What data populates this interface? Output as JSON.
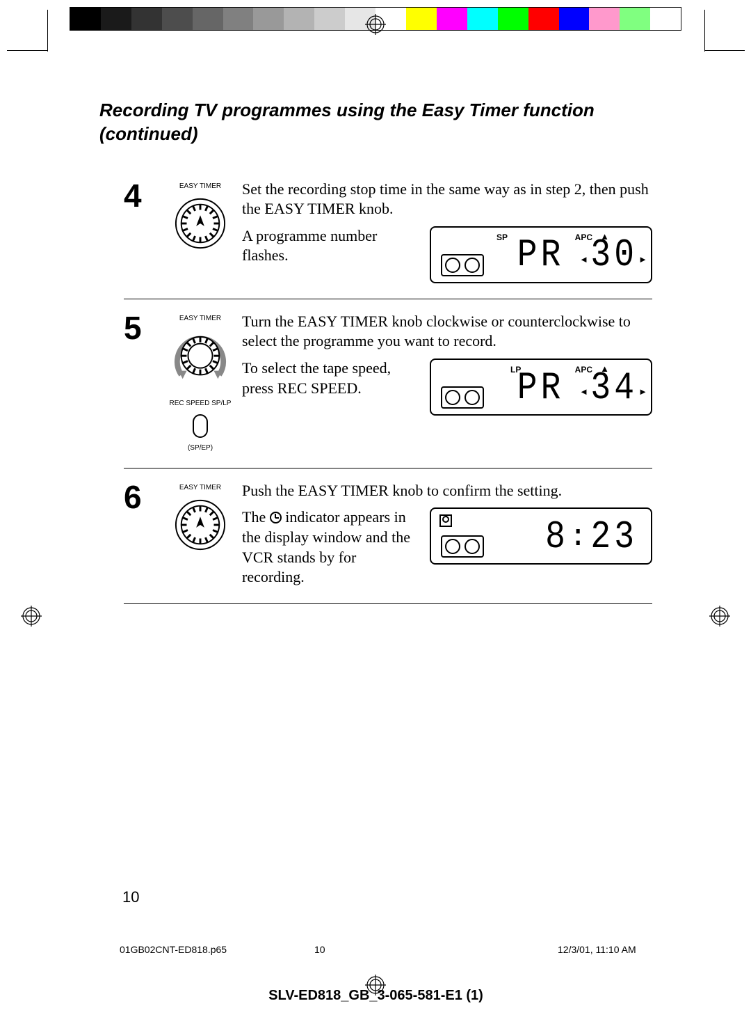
{
  "colorbar": [
    "#000000",
    "#1a1a1a",
    "#333333",
    "#4d4d4d",
    "#666666",
    "#808080",
    "#999999",
    "#b3b3b3",
    "#cccccc",
    "#e6e6e6",
    "#ffffff",
    "#ffff00",
    "#ff00ff",
    "#00ffff",
    "#00ff00",
    "#ff0000",
    "#0000ff",
    "#ff99cc",
    "#80ff80",
    "#ffffff"
  ],
  "title": "Recording TV programmes using the Easy Timer function (continued)",
  "steps": [
    {
      "num": "4",
      "icon_label": "EASY TIMER",
      "text1": "Set the recording stop time in the same way as in step 2, then push the EASY TIMER knob.",
      "text2": "A programme number flashes.",
      "lcd": {
        "mode": "SP",
        "apc": "APC",
        "display": "PR  30",
        "has_arrows": true,
        "has_cassette": true
      }
    },
    {
      "num": "5",
      "icon_label": "EASY TIMER",
      "extra_labels": [
        "REC SPEED SP/LP",
        "(SP/EP)"
      ],
      "text1": "Turn the EASY TIMER knob clockwise or counterclockwise to select the programme you want to record.",
      "text2": "To select the tape speed, press REC SPEED.",
      "lcd": {
        "mode": "LP",
        "apc": "APC",
        "display": "PR  34",
        "has_arrows": true,
        "has_cassette": true
      }
    },
    {
      "num": "6",
      "icon_label": "EASY TIMER",
      "text1": "Push the EASY TIMER knob to confirm the setting.",
      "text2_pre": "The ",
      "text2_post": " indicator appears in the display window and the VCR stands by for recording.",
      "lcd": {
        "display": "8:23",
        "has_clock": true,
        "has_cassette": true
      }
    }
  ],
  "page_num": "10",
  "footer": {
    "file": "01GB02CNT-ED818.p65",
    "page": "10",
    "date": "12/3/01, 11:10 AM"
  },
  "doc_code": "SLV-ED818_GB_3-065-581-E1 (1)"
}
